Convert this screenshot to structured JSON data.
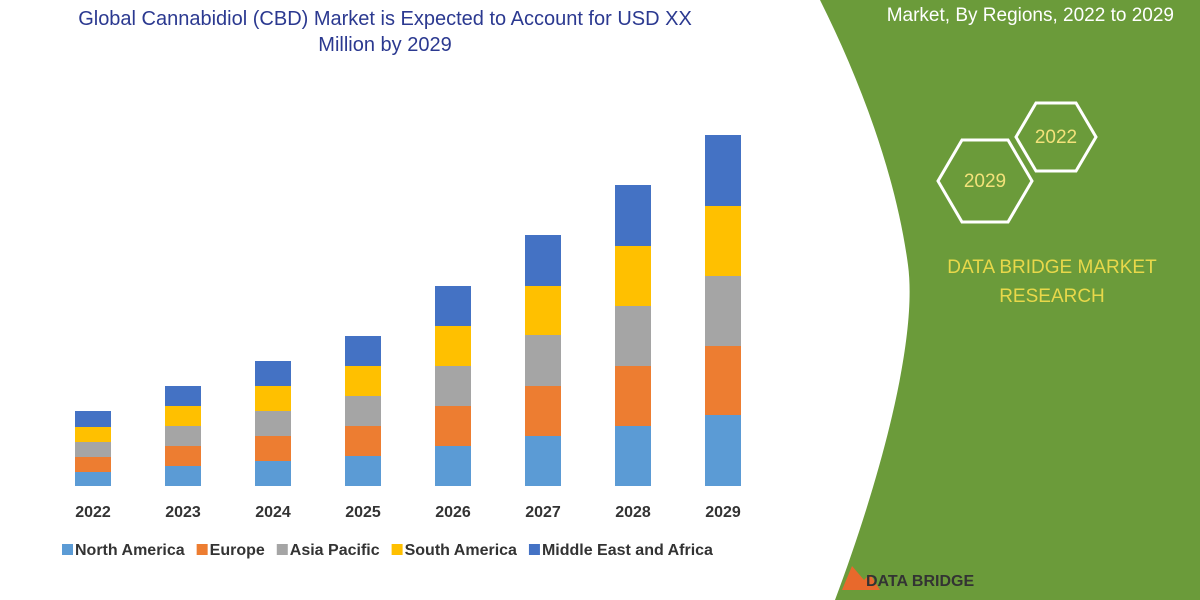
{
  "chart_data": {
    "type": "bar",
    "stacked": true,
    "title": "Global Cannabidiol (CBD) Market is Expected to Account for USD XX Million by 2029",
    "categories": [
      "2022",
      "2023",
      "2024",
      "2025",
      "2026",
      "2027",
      "2028",
      "2029"
    ],
    "series": [
      {
        "name": "North America",
        "color": "#5b9bd5",
        "values": [
          14,
          20,
          25,
          30,
          40,
          50,
          60,
          71
        ]
      },
      {
        "name": "Europe",
        "color": "#ed7d31",
        "values": [
          15,
          20,
          25,
          30,
          40,
          50,
          60,
          69
        ]
      },
      {
        "name": "Asia Pacific",
        "color": "#a5a5a5",
        "values": [
          15,
          20,
          25,
          30,
          40,
          51,
          60,
          70
        ]
      },
      {
        "name": "South America",
        "color": "#ffc000",
        "values": [
          15,
          20,
          25,
          30,
          40,
          49,
          60,
          70
        ]
      },
      {
        "name": "Middle East and Africa",
        "color": "#4472c4",
        "values": [
          16,
          20,
          25,
          30,
          40,
          51,
          61,
          71
        ]
      }
    ],
    "ylim": [
      0,
      351
    ],
    "grid": false,
    "legend": "bottom"
  },
  "side_panel": {
    "heading": "Market, By Regions, 2022 to 2029",
    "hexagons": [
      "2022",
      "2029"
    ],
    "brand": "DATA BRIDGE MARKET RESEARCH",
    "logo_text": "DATA BRIDGE"
  }
}
